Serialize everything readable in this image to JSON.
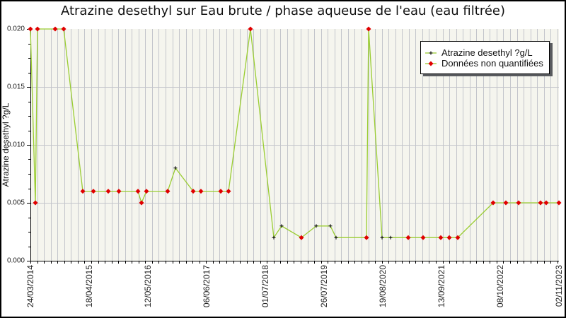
{
  "title": "Atrazine desethyl sur Eau brute / phase aqueuse de l'eau (eau filtrée)",
  "colors": {
    "line": "#9acd32",
    "unquantified_marker": "#e00000",
    "quantified_marker": "#000000",
    "plot_bg": "#f5f5ee",
    "grid": "#c3c5cb",
    "axis": "#000000",
    "text": "#111111"
  },
  "chart_data": {
    "type": "line",
    "title": "Atrazine desethyl sur Eau brute / phase aqueuse de l'eau (eau filtrée)",
    "xlabel": "",
    "ylabel": "Atrazine desethyl ?g/L",
    "ylim": [
      0.0,
      0.02
    ],
    "ytick_labels": [
      "0.000",
      "0.005",
      "0.010",
      "0.015",
      "0.020"
    ],
    "yticks": [
      0.0,
      0.005,
      0.01,
      0.015,
      0.02
    ],
    "y_minor_step": 0.00125,
    "xtick_labels": [
      "24/03/2014",
      "18/04/2015",
      "12/05/2016",
      "06/06/2017",
      "01/07/2018",
      "26/07/2019",
      "19/08/2020",
      "13/09/2021",
      "08/10/2022",
      "02/11/2023"
    ],
    "grid": {
      "vertical_minor": true,
      "horizontal_major": true
    },
    "legend": {
      "position": "top-right",
      "entries": [
        {
          "label": "Atrazine desethyl ?g/L",
          "marker": "black-plus",
          "line_color": "#9acd32"
        },
        {
          "label": "Données non quantifiées",
          "marker": "red-diamond",
          "line_color": "#9acd32"
        }
      ]
    },
    "series_name": "Atrazine desethyl ?g/L",
    "points": [
      {
        "x_frac": 0.0,
        "date_est": "2014-03-24",
        "value": 0.02,
        "quantified": false
      },
      {
        "x_frac": 0.0094,
        "date_est": "2014-04-26",
        "value": 0.005,
        "quantified": false
      },
      {
        "x_frac": 0.0134,
        "date_est": "2014-05-10",
        "value": 0.02,
        "quantified": false
      },
      {
        "x_frac": 0.0469,
        "date_est": "2014-09-05",
        "value": 0.02,
        "quantified": false
      },
      {
        "x_frac": 0.0629,
        "date_est": "2014-10-31",
        "value": 0.02,
        "quantified": false
      },
      {
        "x_frac": 0.0991,
        "date_est": "2015-03-07",
        "value": 0.006,
        "quantified": false
      },
      {
        "x_frac": 0.1191,
        "date_est": "2015-05-17",
        "value": 0.006,
        "quantified": false
      },
      {
        "x_frac": 0.1473,
        "date_est": "2015-08-24",
        "value": 0.006,
        "quantified": false
      },
      {
        "x_frac": 0.1673,
        "date_est": "2015-11-02",
        "value": 0.006,
        "quantified": false
      },
      {
        "x_frac": 0.2035,
        "date_est": "2016-03-08",
        "value": 0.006,
        "quantified": false
      },
      {
        "x_frac": 0.2102,
        "date_est": "2016-04-01",
        "value": 0.005,
        "quantified": false
      },
      {
        "x_frac": 0.2196,
        "date_est": "2016-05-04",
        "value": 0.006,
        "quantified": false
      },
      {
        "x_frac": 0.2597,
        "date_est": "2016-09-22",
        "value": 0.006,
        "quantified": false
      },
      {
        "x_frac": 0.2744,
        "date_est": "2016-11-13",
        "value": 0.008,
        "quantified": true
      },
      {
        "x_frac": 0.3079,
        "date_est": "2017-03-10",
        "value": 0.006,
        "quantified": false
      },
      {
        "x_frac": 0.3226,
        "date_est": "2017-05-01",
        "value": 0.006,
        "quantified": false
      },
      {
        "x_frac": 0.3601,
        "date_est": "2017-09-10",
        "value": 0.006,
        "quantified": false
      },
      {
        "x_frac": 0.3748,
        "date_est": "2017-10-31",
        "value": 0.006,
        "quantified": false
      },
      {
        "x_frac": 0.4163,
        "date_est": "2018-03-26",
        "value": 0.02,
        "quantified": false
      },
      {
        "x_frac": 0.4605,
        "date_est": "2018-08-29",
        "value": 0.002,
        "quantified": true
      },
      {
        "x_frac": 0.4752,
        "date_est": "2018-10-19",
        "value": 0.003,
        "quantified": true
      },
      {
        "x_frac": 0.5127,
        "date_est": "2019-02-28",
        "value": 0.002,
        "quantified": false
      },
      {
        "x_frac": 0.5408,
        "date_est": "2019-06-07",
        "value": 0.003,
        "quantified": true
      },
      {
        "x_frac": 0.5676,
        "date_est": "2019-09-09",
        "value": 0.003,
        "quantified": true
      },
      {
        "x_frac": 0.5783,
        "date_est": "2019-10-17",
        "value": 0.002,
        "quantified": true
      },
      {
        "x_frac": 0.6359,
        "date_est": "2020-05-06",
        "value": 0.002,
        "quantified": false
      },
      {
        "x_frac": 0.6399,
        "date_est": "2020-05-20",
        "value": 0.02,
        "quantified": false
      },
      {
        "x_frac": 0.6653,
        "date_est": "2020-08-17",
        "value": 0.002,
        "quantified": true
      },
      {
        "x_frac": 0.6814,
        "date_est": "2020-10-13",
        "value": 0.002,
        "quantified": true
      },
      {
        "x_frac": 0.7149,
        "date_est": "2021-02-07",
        "value": 0.002,
        "quantified": false
      },
      {
        "x_frac": 0.743,
        "date_est": "2021-05-17",
        "value": 0.002,
        "quantified": false
      },
      {
        "x_frac": 0.7765,
        "date_est": "2021-09-12",
        "value": 0.002,
        "quantified": false
      },
      {
        "x_frac": 0.7925,
        "date_est": "2021-11-07",
        "value": 0.002,
        "quantified": false
      },
      {
        "x_frac": 0.8086,
        "date_est": "2022-01-03",
        "value": 0.002,
        "quantified": false
      },
      {
        "x_frac": 0.8755,
        "date_est": "2022-08-26",
        "value": 0.005,
        "quantified": false
      },
      {
        "x_frac": 0.8996,
        "date_est": "2022-11-19",
        "value": 0.005,
        "quantified": false
      },
      {
        "x_frac": 0.9237,
        "date_est": "2023-02-11",
        "value": 0.005,
        "quantified": false
      },
      {
        "x_frac": 0.9652,
        "date_est": "2023-07-07",
        "value": 0.005,
        "quantified": false
      },
      {
        "x_frac": 0.9759,
        "date_est": "2023-08-14",
        "value": 0.005,
        "quantified": false
      },
      {
        "x_frac": 1.0,
        "date_est": "2023-11-02",
        "value": 0.005,
        "quantified": false
      }
    ]
  }
}
